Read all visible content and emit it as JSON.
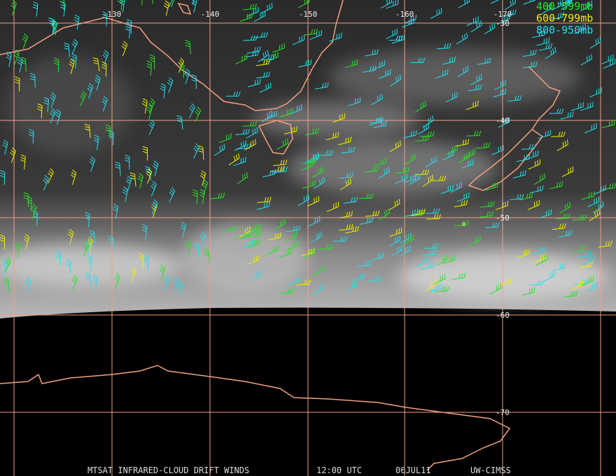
{
  "map": {
    "lon_labels": [
      "-130",
      "-140",
      "-150",
      "-160",
      "-170"
    ],
    "lat_labels": [
      "-30",
      "-40",
      "-50",
      "-60",
      "-70"
    ],
    "legend": [
      {
        "label": "400-599mb",
        "color": "#22e622"
      },
      {
        "label": "600-799mb",
        "color": "#f0f000"
      },
      {
        "label": "800-950mb",
        "color": "#22e0f0"
      }
    ],
    "footer": [
      "MTSAT INFRARED-CLOUD DRIFT WINDS",
      "12:00 UTC",
      "06JUL11",
      "UW-CIMSS"
    ]
  }
}
